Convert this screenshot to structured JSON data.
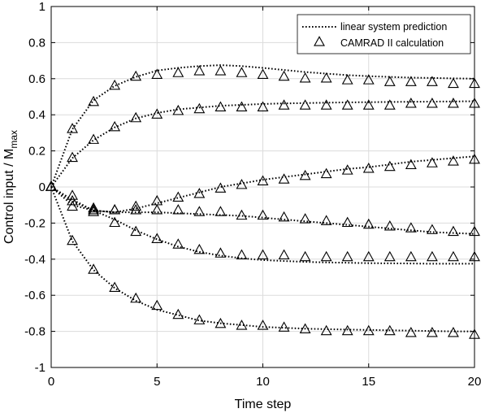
{
  "chart_data": {
    "type": "line",
    "title": "",
    "xlabel": "Time step",
    "ylabel_main": "Control input / M",
    "ylabel_sub": "max",
    "xlim": [
      0,
      20
    ],
    "ylim": [
      -1,
      1
    ],
    "xticks": [
      0,
      5,
      10,
      15,
      20
    ],
    "yticks": [
      -1,
      -0.8,
      -0.6,
      -0.4,
      -0.2,
      0,
      0.2,
      0.4,
      0.6,
      0.8,
      1
    ],
    "xtick_labels": [
      "0",
      "5",
      "10",
      "15",
      "20"
    ],
    "ytick_labels": [
      "-1",
      "-0.8",
      "-0.6",
      "-0.4",
      "-0.2",
      "0",
      "0.2",
      "0.4",
      "0.6",
      "0.8",
      "1"
    ],
    "grid": true,
    "legend_position": "top-right",
    "legend": [
      {
        "label": "linear system prediction",
        "style": "dotted-line"
      },
      {
        "label": "CAMRAD II calculation",
        "style": "triangle-marker"
      }
    ],
    "x": [
      0,
      1,
      2,
      3,
      4,
      5,
      6,
      7,
      8,
      9,
      10,
      11,
      12,
      13,
      14,
      15,
      16,
      17,
      18,
      19,
      20
    ],
    "series": [
      {
        "prediction": [
          0,
          0.32,
          0.48,
          0.56,
          0.61,
          0.645,
          0.66,
          0.67,
          0.675,
          0.67,
          0.66,
          0.648,
          0.637,
          0.628,
          0.62,
          0.614,
          0.61,
          0.606,
          0.604,
          0.602,
          0.6
        ],
        "calculation": [
          0,
          0.32,
          0.47,
          0.56,
          0.61,
          0.62,
          0.63,
          0.64,
          0.64,
          0.63,
          0.62,
          0.61,
          0.6,
          0.6,
          0.59,
          0.59,
          0.58,
          0.58,
          0.58,
          0.57,
          0.57
        ]
      },
      {
        "prediction": [
          0,
          0.16,
          0.26,
          0.33,
          0.38,
          0.41,
          0.43,
          0.44,
          0.45,
          0.455,
          0.46,
          0.463,
          0.465,
          0.467,
          0.469,
          0.47,
          0.471,
          0.472,
          0.473,
          0.474,
          0.475
        ],
        "calculation": [
          0,
          0.16,
          0.26,
          0.33,
          0.38,
          0.4,
          0.42,
          0.43,
          0.44,
          0.44,
          0.44,
          0.45,
          0.45,
          0.45,
          0.45,
          0.45,
          0.45,
          0.46,
          0.46,
          0.46,
          0.46
        ]
      },
      {
        "prediction": [
          0,
          -0.07,
          -0.13,
          -0.14,
          -0.12,
          -0.09,
          -0.06,
          -0.03,
          0.0,
          0.02,
          0.04,
          0.055,
          0.07,
          0.085,
          0.1,
          0.11,
          0.125,
          0.14,
          0.15,
          0.16,
          0.17
        ],
        "calculation": [
          0,
          -0.05,
          -0.12,
          -0.13,
          -0.11,
          -0.08,
          -0.06,
          -0.04,
          -0.01,
          0.01,
          0.03,
          0.04,
          0.06,
          0.07,
          0.09,
          0.1,
          0.11,
          0.12,
          0.13,
          0.14,
          0.15
        ]
      },
      {
        "prediction": [
          0,
          -0.1,
          -0.13,
          -0.14,
          -0.14,
          -0.14,
          -0.145,
          -0.15,
          -0.155,
          -0.16,
          -0.17,
          -0.18,
          -0.19,
          -0.2,
          -0.21,
          -0.22,
          -0.23,
          -0.24,
          -0.25,
          -0.255,
          -0.26
        ],
        "calculation": [
          0,
          -0.11,
          -0.14,
          -0.13,
          -0.13,
          -0.13,
          -0.13,
          -0.14,
          -0.14,
          -0.16,
          -0.16,
          -0.17,
          -0.18,
          -0.19,
          -0.2,
          -0.21,
          -0.22,
          -0.23,
          -0.24,
          -0.25,
          -0.25
        ]
      },
      {
        "prediction": [
          0,
          -0.08,
          -0.13,
          -0.18,
          -0.24,
          -0.29,
          -0.33,
          -0.36,
          -0.38,
          -0.395,
          -0.405,
          -0.41,
          -0.415,
          -0.418,
          -0.42,
          -0.422,
          -0.423,
          -0.424,
          -0.425,
          -0.425,
          -0.425
        ],
        "calculation": [
          0,
          -0.08,
          -0.13,
          -0.2,
          -0.25,
          -0.29,
          -0.32,
          -0.35,
          -0.37,
          -0.38,
          -0.38,
          -0.38,
          -0.39,
          -0.39,
          -0.39,
          -0.39,
          -0.39,
          -0.39,
          -0.39,
          -0.39,
          -0.39
        ]
      },
      {
        "prediction": [
          0,
          -0.3,
          -0.46,
          -0.56,
          -0.63,
          -0.68,
          -0.71,
          -0.74,
          -0.755,
          -0.765,
          -0.775,
          -0.78,
          -0.785,
          -0.788,
          -0.79,
          -0.792,
          -0.794,
          -0.796,
          -0.798,
          -0.8,
          -0.8
        ],
        "calculation": [
          0,
          -0.3,
          -0.46,
          -0.56,
          -0.62,
          -0.66,
          -0.71,
          -0.74,
          -0.76,
          -0.77,
          -0.77,
          -0.78,
          -0.79,
          -0.8,
          -0.8,
          -0.8,
          -0.8,
          -0.81,
          -0.81,
          -0.81,
          -0.82
        ]
      }
    ]
  }
}
